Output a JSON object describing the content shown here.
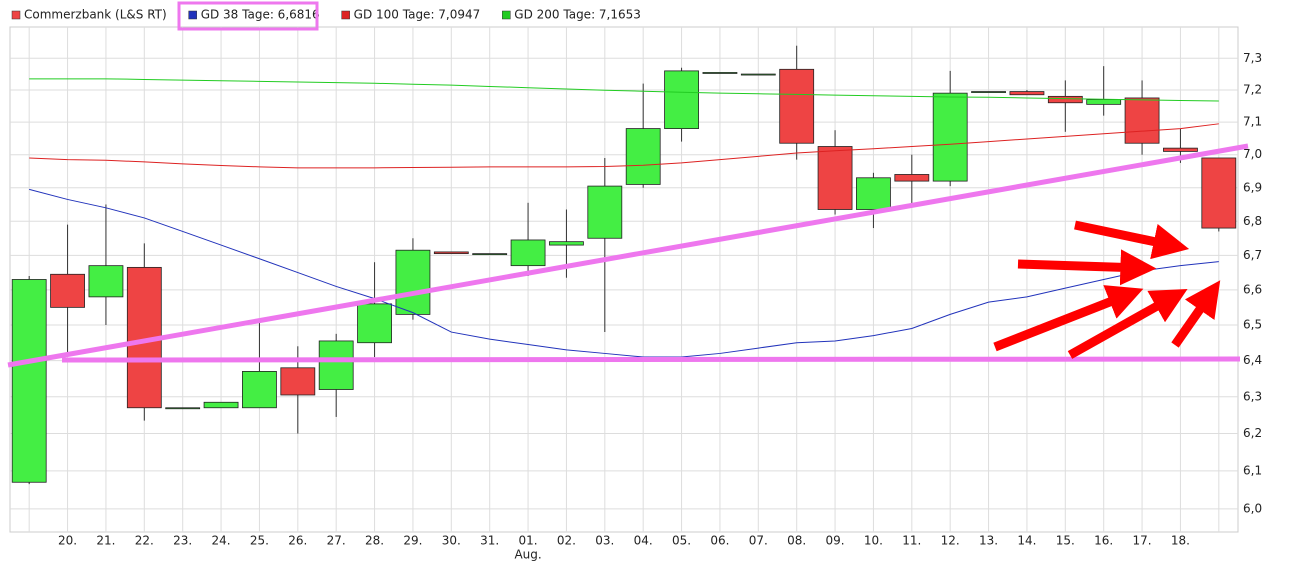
{
  "chart_data": {
    "type": "candlestick",
    "name": "Commerzbank (L&S RT)",
    "up_color": "#44ee44",
    "down_color": "#ee4444",
    "legend_color": "#ee4444",
    "categories": [
      null,
      "20.",
      "21.",
      "22.",
      "23.",
      "24.",
      "25.",
      "26.",
      "27.",
      "28.",
      "29.",
      "30.",
      "31.",
      "01.",
      "02.",
      "03.",
      "04.",
      "05.",
      "06.",
      "07.",
      "08.",
      "09.",
      "10.",
      "11.",
      "12.",
      "13.",
      "14.",
      "15.",
      "16.",
      "17.",
      "18.",
      null
    ],
    "x_sublabels": [
      null,
      null,
      null,
      null,
      null,
      null,
      null,
      null,
      null,
      null,
      null,
      null,
      null,
      "Aug.",
      null,
      null,
      null,
      null,
      null,
      null,
      null,
      null,
      null,
      null,
      null,
      null,
      null,
      null,
      null,
      null,
      null,
      null
    ],
    "open": [
      6.07,
      6.645,
      6.58,
      6.665,
      6.27,
      6.27,
      6.27,
      6.38,
      6.32,
      6.45,
      6.53,
      6.71,
      6.705,
      6.67,
      6.73,
      6.75,
      6.91,
      7.08,
      7.255,
      7.25,
      7.265,
      7.025,
      6.835,
      6.94,
      6.92,
      7.195,
      7.195,
      7.18,
      7.155,
      7.175,
      7.02,
      6.99
    ],
    "high": [
      6.64,
      6.79,
      6.85,
      6.735,
      6.27,
      6.285,
      6.51,
      6.44,
      6.475,
      6.68,
      6.75,
      6.71,
      6.705,
      6.855,
      6.835,
      6.99,
      7.22,
      7.27,
      7.255,
      7.25,
      7.34,
      7.075,
      6.945,
      7.0,
      7.26,
      7.195,
      7.2,
      7.23,
      7.275,
      7.23,
      7.08,
      6.99
    ],
    "low": [
      6.065,
      6.42,
      6.5,
      6.235,
      6.27,
      6.27,
      6.27,
      6.2,
      6.245,
      6.41,
      6.515,
      6.705,
      6.705,
      6.64,
      6.635,
      6.48,
      6.9,
      7.04,
      7.255,
      7.25,
      6.985,
      6.82,
      6.78,
      6.845,
      6.905,
      7.195,
      7.185,
      7.07,
      7.12,
      7.0,
      6.975,
      6.77
    ],
    "close": [
      6.63,
      6.55,
      6.67,
      6.27,
      6.27,
      6.285,
      6.37,
      6.305,
      6.455,
      6.56,
      6.715,
      6.705,
      6.705,
      6.745,
      6.74,
      6.905,
      7.08,
      7.26,
      7.255,
      7.25,
      7.035,
      6.835,
      6.93,
      6.92,
      7.19,
      7.195,
      7.185,
      7.16,
      7.17,
      7.035,
      7.01,
      6.78
    ],
    "series": [
      {
        "name": "GD 38 Tage: 6,6816",
        "color": "#2233bb",
        "values": [
          6.895,
          6.865,
          6.84,
          6.81,
          6.77,
          6.73,
          6.69,
          6.65,
          6.61,
          6.575,
          6.535,
          6.48,
          6.46,
          6.445,
          6.43,
          6.42,
          6.41,
          6.41,
          6.42,
          6.435,
          6.45,
          6.455,
          6.47,
          6.49,
          6.53,
          6.565,
          6.58,
          6.605,
          6.63,
          6.655,
          6.67,
          6.6816
        ]
      },
      {
        "name": "GD 100 Tage: 7,0947",
        "color": "#dd2222",
        "values": [
          6.99,
          6.985,
          6.983,
          6.978,
          6.972,
          6.967,
          6.963,
          6.96,
          6.96,
          6.96,
          6.961,
          6.962,
          6.963,
          6.963,
          6.963,
          6.964,
          6.968,
          6.975,
          6.985,
          6.995,
          7.005,
          7.012,
          7.018,
          7.025,
          7.032,
          7.04,
          7.048,
          7.056,
          7.064,
          7.072,
          7.08,
          7.0947
        ]
      },
      {
        "name": "GD 200 Tage: 7,1653",
        "color": "#22cc22",
        "values": [
          7.235,
          7.235,
          7.235,
          7.233,
          7.231,
          7.229,
          7.227,
          7.225,
          7.223,
          7.221,
          7.218,
          7.215,
          7.211,
          7.207,
          7.203,
          7.199,
          7.196,
          7.193,
          7.19,
          7.188,
          7.186,
          7.184,
          7.182,
          7.18,
          7.178,
          7.177,
          7.175,
          7.173,
          7.171,
          7.169,
          7.167,
          7.1653
        ]
      }
    ],
    "log_scale": true,
    "grid": true,
    "ylim": [
      5.94,
      7.4
    ],
    "yticks": [
      {
        "value": 6.0,
        "label": "6,0"
      },
      {
        "value": 6.1,
        "label": "6,1"
      },
      {
        "value": 6.2,
        "label": "6,2"
      },
      {
        "value": 6.3,
        "label": "6,3"
      },
      {
        "value": 6.4,
        "label": "6,4"
      },
      {
        "value": 6.5,
        "label": "6,5"
      },
      {
        "value": 6.6,
        "label": "6,6"
      },
      {
        "value": 6.7,
        "label": "6,7"
      },
      {
        "value": 6.8,
        "label": "6,8"
      },
      {
        "value": 6.9,
        "label": "6,9"
      },
      {
        "value": 7.0,
        "label": "7,0"
      },
      {
        "value": 7.1,
        "label": "7,1"
      },
      {
        "value": 7.2,
        "label": "7,2"
      },
      {
        "value": 7.3,
        "label": "7,3"
      }
    ]
  }
}
